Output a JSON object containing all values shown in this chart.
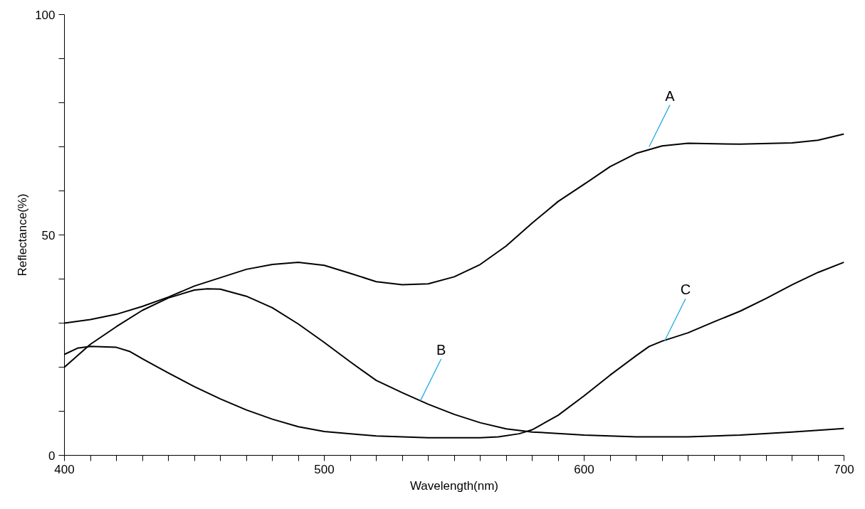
{
  "chart_data": {
    "type": "line",
    "xlabel": "Wavelength(nm)",
    "ylabel": "Reflectance(%)",
    "xlim": [
      400,
      700
    ],
    "ylim": [
      0,
      100
    ],
    "xticks": [
      400,
      {
        "value": 410,
        "label": null
      },
      {
        "value": 420,
        "label": null
      },
      {
        "value": 430,
        "label": null
      },
      {
        "value": 440,
        "label": null
      },
      {
        "value": 450,
        "label": null
      },
      {
        "value": 460,
        "label": null
      },
      {
        "value": 470,
        "label": null
      },
      {
        "value": 480,
        "label": null
      },
      {
        "value": 490,
        "label": null
      },
      500,
      {
        "value": 510,
        "label": null
      },
      {
        "value": 520,
        "label": null
      },
      {
        "value": 530,
        "label": null
      },
      {
        "value": 540,
        "label": null
      },
      {
        "value": 550,
        "label": null
      },
      {
        "value": 560,
        "label": null
      },
      {
        "value": 570,
        "label": null
      },
      {
        "value": 580,
        "label": null
      },
      {
        "value": 590,
        "label": null
      },
      600,
      {
        "value": 610,
        "label": null
      },
      {
        "value": 620,
        "label": null
      },
      {
        "value": 630,
        "label": null
      },
      {
        "value": 640,
        "label": null
      },
      {
        "value": 650,
        "label": null
      },
      {
        "value": 660,
        "label": null
      },
      {
        "value": 670,
        "label": null
      },
      {
        "value": 680,
        "label": null
      },
      {
        "value": 690,
        "label": null
      },
      700
    ],
    "yticks": [
      0,
      {
        "value": 10,
        "label": null
      },
      {
        "value": 20,
        "label": null
      },
      {
        "value": 30,
        "label": null
      },
      {
        "value": 40,
        "label": null
      },
      50,
      {
        "value": 60,
        "label": null
      },
      {
        "value": 70,
        "label": null
      },
      {
        "value": 80,
        "label": null
      },
      {
        "value": 90,
        "label": null
      },
      100
    ],
    "grid": false,
    "marker": "none",
    "line_style": "solid",
    "series": [
      {
        "color": "#000000",
        "x": [
          400,
          410,
          420,
          430,
          440,
          450,
          460,
          470,
          480,
          490,
          500,
          510,
          520,
          530,
          540,
          550,
          560,
          570,
          580,
          590,
          600,
          610,
          620,
          630,
          640,
          660,
          680,
          690,
          700
        ],
        "values": [
          30,
          30.8,
          32,
          33.8,
          35.9,
          38.4,
          40.3,
          42.2,
          43.3,
          43.8,
          43.1,
          41.3,
          39.4,
          38.7,
          38.9,
          40.5,
          43.3,
          47.5,
          52.7,
          57.6,
          61.5,
          65.5,
          68.5,
          70.2,
          70.8,
          70.6,
          70.9,
          71.5,
          72.9
        ]
      },
      {
        "color": "#000000",
        "x": [
          400,
          410,
          420,
          430,
          440,
          450,
          455,
          460,
          470,
          480,
          490,
          500,
          510,
          520,
          530,
          540,
          550,
          560,
          570,
          580,
          600,
          620,
          640,
          660,
          680,
          700
        ],
        "values": [
          20,
          25.2,
          29.2,
          32.9,
          35.7,
          37.5,
          37.8,
          37.7,
          36.1,
          33.5,
          29.8,
          25.6,
          21.2,
          17,
          14.2,
          11.6,
          9.3,
          7.4,
          6,
          5.3,
          4.6,
          4.2,
          4.2,
          4.6,
          5.3,
          6.1
        ]
      },
      {
        "color": "#000000",
        "x": [
          400,
          405,
          410,
          420,
          425,
          430,
          440,
          450,
          460,
          470,
          480,
          490,
          500,
          520,
          540,
          560,
          567,
          575,
          580,
          590,
          600,
          610,
          620,
          625,
          630,
          640,
          650,
          660,
          670,
          680,
          690,
          700
        ],
        "values": [
          22.9,
          24.3,
          24.7,
          24.5,
          23.6,
          21.9,
          18.7,
          15.6,
          12.8,
          10.3,
          8.2,
          6.5,
          5.4,
          4.4,
          4,
          4,
          4.2,
          4.9,
          5.8,
          9.1,
          13.5,
          18.2,
          22.6,
          24.7,
          25.9,
          27.8,
          30.3,
          32.7,
          35.6,
          38.7,
          41.5,
          43.8
        ]
      }
    ],
    "annotations": [
      {
        "text": "A",
        "x": 625,
        "y": 70
      },
      {
        "text": "B",
        "x": 537,
        "y": 12.4
      },
      {
        "text": "C",
        "x": 631,
        "y": 26
      }
    ]
  }
}
